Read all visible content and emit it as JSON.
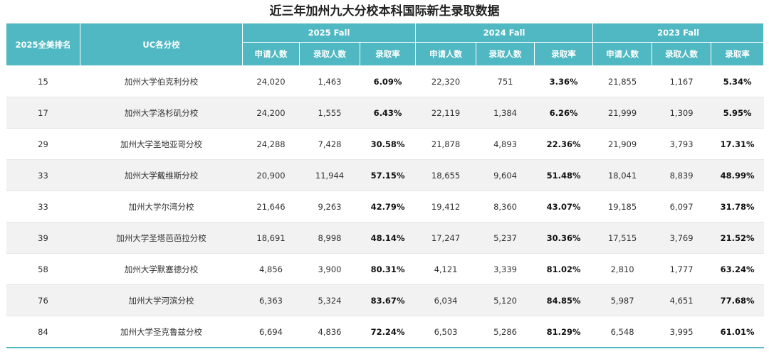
{
  "title": "近三年加州九大分校本科国际新生录取数据",
  "table": {
    "header": {
      "rank": "2025全美排名",
      "school": "UC各分校",
      "years": [
        {
          "label": "2025 Fall",
          "columns": [
            "申请人数",
            "录取人数",
            "录取率"
          ]
        },
        {
          "label": "2024 Fall",
          "columns": [
            "申请人数",
            "录取人数",
            "录取率"
          ]
        },
        {
          "label": "2023 Fall",
          "columns": [
            "申请人数",
            "录取人数",
            "录取率"
          ]
        }
      ]
    },
    "rows": [
      [
        "15",
        "加州大学伯克利分校",
        "24,020",
        "1,463",
        "6.09%",
        "22,320",
        "751",
        "3.36%",
        "21,855",
        "1,167",
        "5.34%"
      ],
      [
        "17",
        "加州大学洛杉矶分校",
        "24,200",
        "1,555",
        "6.43%",
        "22,119",
        "1,384",
        "6.26%",
        "21,999",
        "1,309",
        "5.95%"
      ],
      [
        "29",
        "加州大学圣地亚哥分校",
        "24,288",
        "7,428",
        "30.58%",
        "21,878",
        "4,893",
        "22.36%",
        "21,909",
        "3,793",
        "17.31%"
      ],
      [
        "33",
        "加州大学戴维斯分校",
        "20,900",
        "11,944",
        "57.15%",
        "18,655",
        "9,604",
        "51.48%",
        "18,041",
        "8,839",
        "48.99%"
      ],
      [
        "33",
        "加州大学尔湾分校",
        "21,646",
        "9,263",
        "42.79%",
        "19,412",
        "8,360",
        "43.07%",
        "19,185",
        "6,097",
        "31.78%"
      ],
      [
        "39",
        "加州大学圣塔芭芭拉分校",
        "18,691",
        "8,998",
        "48.14%",
        "17,247",
        "5,237",
        "30.36%",
        "17,515",
        "3,769",
        "21.52%"
      ],
      [
        "58",
        "加州大学默塞德分校",
        "4,856",
        "3,900",
        "80.31%",
        "4,121",
        "3,339",
        "81.02%",
        "2,810",
        "1,777",
        "63.24%"
      ],
      [
        "76",
        "加州大学河滨分校",
        "6,363",
        "5,324",
        "83.67%",
        "6,034",
        "5,120",
        "84.85%",
        "5,987",
        "4,651",
        "77.68%"
      ],
      [
        "84",
        "加州大学圣克鲁兹分校",
        "6,694",
        "4,836",
        "72.24%",
        "6,503",
        "5,286",
        "81.29%",
        "6,548",
        "3,995",
        "61.01%"
      ]
    ]
  }
}
